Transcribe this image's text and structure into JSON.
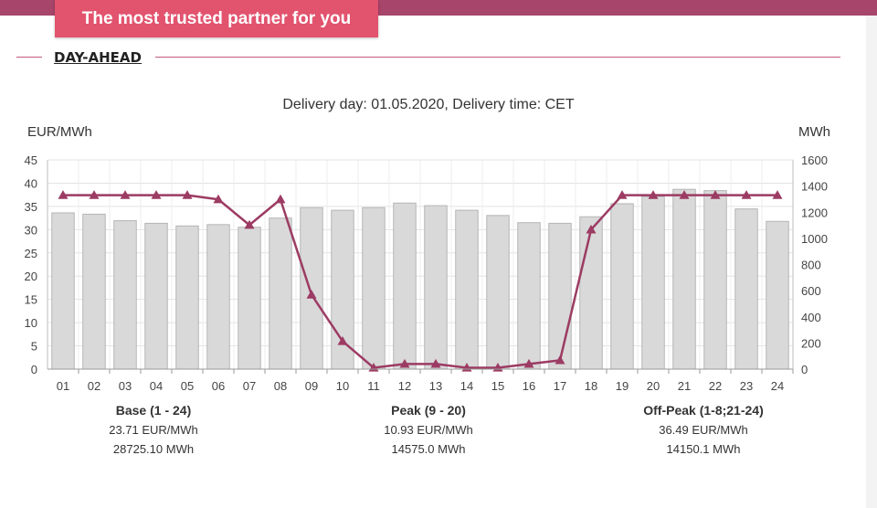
{
  "header": {
    "tagline": "The most trusted partner for you",
    "section_title": "DAY-AHEAD"
  },
  "colors": {
    "bar_fill": "#d9d9d9",
    "bar_stroke": "#b5b5b5",
    "line": "#9c3b63",
    "accent": "#e2536e"
  },
  "chart_data": {
    "type": "bar",
    "title": "Delivery day: 01.05.2020, Delivery time: CET",
    "ylabel_left": "EUR/MWh",
    "ylabel_right": "MWh",
    "ylim_left": [
      0,
      45
    ],
    "yticks_left": [
      0,
      5,
      10,
      15,
      20,
      25,
      30,
      35,
      40,
      45
    ],
    "ylim_right": [
      0,
      1600
    ],
    "yticks_right": [
      0,
      200,
      400,
      600,
      800,
      1000,
      1200,
      1400,
      1600
    ],
    "grid": true,
    "categories": [
      "01",
      "02",
      "03",
      "04",
      "05",
      "06",
      "07",
      "08",
      "09",
      "10",
      "11",
      "12",
      "13",
      "14",
      "15",
      "16",
      "17",
      "18",
      "19",
      "20",
      "21",
      "22",
      "23",
      "24"
    ],
    "series": [
      {
        "axis": "right",
        "type": "bar",
        "values": [
          1195,
          1185,
          1135,
          1115,
          1095,
          1105,
          1085,
          1155,
          1235,
          1215,
          1235,
          1270,
          1250,
          1215,
          1175,
          1120,
          1115,
          1165,
          1265,
          1320,
          1375,
          1365,
          1225,
          1130
        ]
      },
      {
        "axis": "left",
        "type": "line",
        "marker": "triangle",
        "values": [
          37.4,
          37.4,
          37.4,
          37.4,
          37.4,
          36.5,
          31.0,
          36.5,
          16.0,
          6.0,
          0.3,
          1.1,
          1.1,
          0.3,
          0.3,
          1.1,
          1.9,
          30.0,
          37.4,
          37.4,
          37.4,
          37.4,
          37.4,
          37.4
        ]
      }
    ]
  },
  "summaries": [
    {
      "title": "Base (1 - 24)",
      "price": "23.71 EUR/MWh",
      "volume": "28725.10 MWh"
    },
    {
      "title": "Peak (9 - 20)",
      "price": "10.93 EUR/MWh",
      "volume": "14575.0 MWh"
    },
    {
      "title": "Off-Peak (1-8;21-24)",
      "price": "36.49 EUR/MWh",
      "volume": "14150.1 MWh"
    }
  ]
}
